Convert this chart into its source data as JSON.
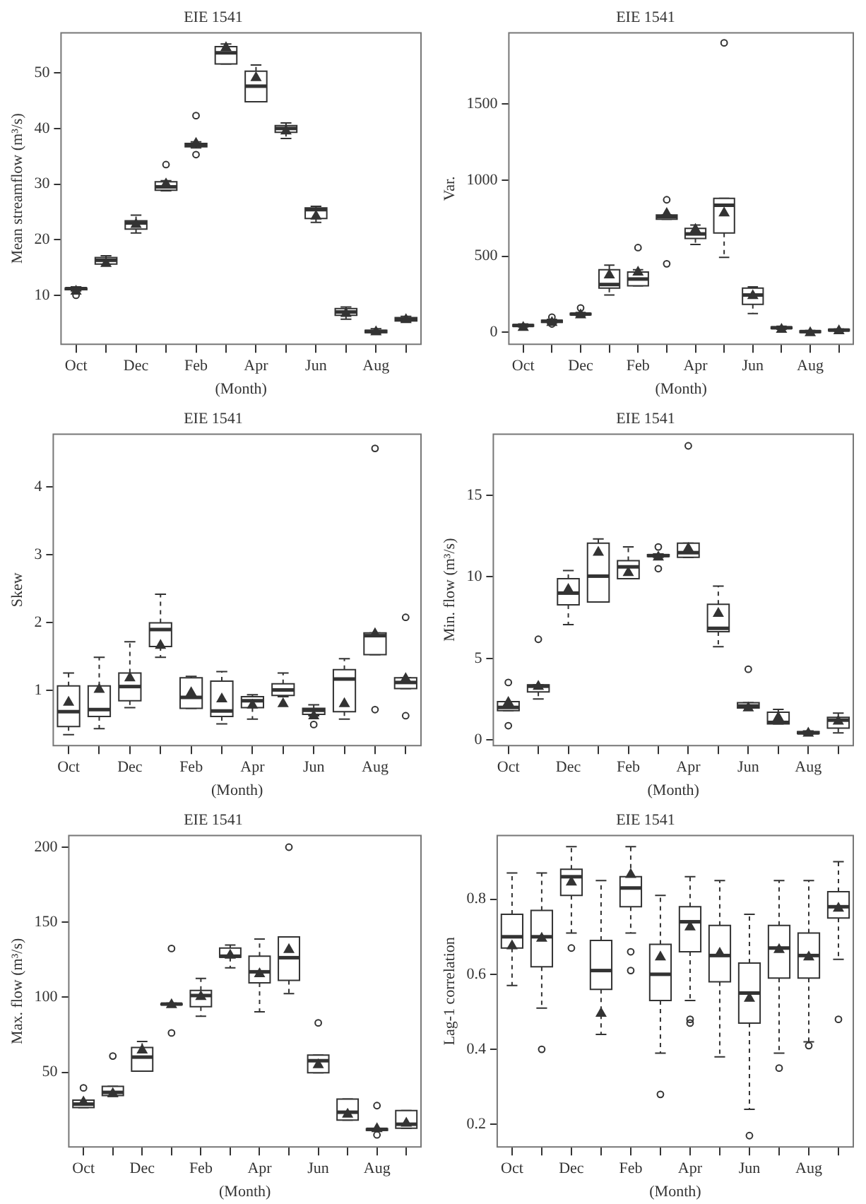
{
  "chart_data": [
    {
      "type": "box",
      "title": "EIE 1541",
      "xlabel": "(Month)",
      "ylabel": "Mean streamflow (m³/s)",
      "categories": [
        "Oct",
        null,
        "Dec",
        null,
        "Feb",
        null,
        "Apr",
        null,
        "Jun",
        null,
        "Aug",
        null
      ],
      "ylim": [
        1.2,
        57.2
      ],
      "yticks": [
        10,
        20,
        30,
        40,
        50
      ],
      "grid": false,
      "boxes": [
        {
          "low": 10.8,
          "q1": 11.0,
          "median": 11.2,
          "q3": 11.3,
          "high": 11.5,
          "mean": 11.0,
          "outliers": [
            10.0
          ]
        },
        {
          "low": 15.6,
          "q1": 15.6,
          "median": 16.3,
          "q3": 16.8,
          "high": 17.1,
          "mean": 16.0
        },
        {
          "low": 21.2,
          "q1": 21.9,
          "median": 23.0,
          "q3": 23.4,
          "high": 24.4,
          "mean": 23.0
        },
        {
          "low": 28.8,
          "q1": 28.9,
          "median": 29.5,
          "q3": 30.4,
          "high": 30.6,
          "mean": 30.3,
          "outliers": [
            33.5
          ]
        },
        {
          "low": 36.5,
          "q1": 36.7,
          "median": 37.0,
          "q3": 37.3,
          "high": 37.6,
          "mean": 37.6,
          "outliers": [
            42.3,
            35.3
          ]
        },
        {
          "low": 51.6,
          "q1": 51.6,
          "median": 53.6,
          "q3": 54.7,
          "high": 55.2,
          "mean": 54.8
        },
        {
          "low": 44.8,
          "q1": 44.8,
          "median": 47.6,
          "q3": 50.3,
          "high": 51.4,
          "mean": 49.4
        },
        {
          "low": 38.2,
          "q1": 39.3,
          "median": 40.0,
          "q3": 40.5,
          "high": 41.0,
          "mean": 39.8
        },
        {
          "low": 23.1,
          "q1": 23.8,
          "median": 25.4,
          "q3": 25.7,
          "high": 26.0,
          "mean": 24.5
        },
        {
          "low": 5.7,
          "q1": 6.4,
          "median": 7.0,
          "q3": 7.6,
          "high": 7.9,
          "mean": 7.0
        },
        {
          "low": 3.2,
          "q1": 3.3,
          "median": 3.5,
          "q3": 3.7,
          "high": 4.0,
          "mean": 3.7
        },
        {
          "low": 5.3,
          "q1": 5.4,
          "median": 5.7,
          "q3": 6.0,
          "high": 6.2,
          "mean": 5.9
        }
      ]
    },
    {
      "type": "box",
      "title": "EIE 1541",
      "xlabel": "(Month)",
      "ylabel": "Var.",
      "categories": [
        "Oct",
        null,
        "Dec",
        null,
        "Feb",
        null,
        "Apr",
        null,
        "Jun",
        null,
        "Aug",
        null
      ],
      "ylim": [
        -78,
        1966
      ],
      "yticks": [
        0,
        500,
        1000,
        1500
      ],
      "grid": false,
      "boxes": [
        {
          "low": 35,
          "q1": 40,
          "median": 45,
          "q3": 50,
          "high": 55,
          "mean": 42
        },
        {
          "low": 60,
          "q1": 65,
          "median": 73,
          "q3": 80,
          "high": 85,
          "mean": 75,
          "outliers": [
            100,
            55
          ]
        },
        {
          "low": 110,
          "q1": 115,
          "median": 120,
          "q3": 125,
          "high": 130,
          "mean": 125,
          "outliers": [
            160
          ]
        },
        {
          "low": 245,
          "q1": 290,
          "median": 314,
          "q3": 411,
          "high": 441,
          "mean": 387
        },
        {
          "low": 305,
          "q1": 305,
          "median": 350,
          "q3": 396,
          "high": 411,
          "mean": 405,
          "outliers": [
            556
          ]
        },
        {
          "low": 743,
          "q1": 743,
          "median": 760,
          "q3": 770,
          "high": 770,
          "mean": 790,
          "outliers": [
            870,
            450
          ]
        },
        {
          "low": 577,
          "q1": 616,
          "median": 646,
          "q3": 682,
          "high": 704,
          "mean": 686
        },
        {
          "low": 492,
          "q1": 652,
          "median": 834,
          "q3": 879,
          "high": 879,
          "mean": 794,
          "outliers": [
            1900
          ]
        },
        {
          "low": 124,
          "q1": 184,
          "median": 245,
          "q3": 290,
          "high": 299,
          "mean": 251
        },
        {
          "low": 20,
          "q1": 25,
          "median": 30,
          "q3": 35,
          "high": 40,
          "mean": 30
        },
        {
          "low": 0,
          "q1": 0,
          "median": 5,
          "q3": 10,
          "high": 12,
          "mean": 8
        },
        {
          "low": 8,
          "q1": 10,
          "median": 15,
          "q3": 20,
          "high": 22,
          "mean": 20
        }
      ]
    },
    {
      "type": "box",
      "title": "EIE 1541",
      "xlabel": "(Month)",
      "ylabel": "Skew",
      "categories": [
        "Oct",
        null,
        "Dec",
        null,
        "Feb",
        null,
        "Apr",
        null,
        "Jun",
        null,
        "Aug",
        null
      ],
      "ylim": [
        0.19,
        4.78
      ],
      "yticks": [
        1,
        2,
        3,
        4
      ],
      "grid": false,
      "boxes": [
        {
          "low": 0.35,
          "q1": 0.47,
          "median": 0.69,
          "q3": 1.07,
          "high": 1.26,
          "mean": 0.85
        },
        {
          "low": 0.44,
          "q1": 0.62,
          "median": 0.72,
          "q3": 1.07,
          "high": 1.49,
          "mean": 1.04
        },
        {
          "low": 0.75,
          "q1": 0.85,
          "median": 1.06,
          "q3": 1.26,
          "high": 1.72,
          "mean": 1.21
        },
        {
          "low": 1.49,
          "q1": 1.65,
          "median": 1.9,
          "q3": 2.0,
          "high": 2.42,
          "mean": 1.69
        },
        {
          "low": 0.74,
          "q1": 0.74,
          "median": 0.9,
          "q3": 1.19,
          "high": 1.21,
          "mean": 0.99
        },
        {
          "low": 0.51,
          "q1": 0.62,
          "median": 0.7,
          "q3": 1.14,
          "high": 1.28,
          "mean": 0.9
        },
        {
          "low": 0.58,
          "q1": 0.75,
          "median": 0.85,
          "q3": 0.91,
          "high": 0.94,
          "mean": 0.81
        },
        {
          "low": 0.91,
          "q1": 0.93,
          "median": 1.01,
          "q3": 1.1,
          "high": 1.26,
          "mean": 0.83
        },
        {
          "low": 0.63,
          "q1": 0.65,
          "median": 0.71,
          "q3": 0.74,
          "high": 0.79,
          "mean": 0.65,
          "outliers": [
            0.5
          ]
        },
        {
          "low": 0.58,
          "q1": 0.69,
          "median": 1.17,
          "q3": 1.31,
          "high": 1.47,
          "mean": 0.83
        },
        {
          "low": 1.53,
          "q1": 1.53,
          "median": 1.81,
          "q3": 1.85,
          "high": 1.85,
          "mean": 1.86,
          "outliers": [
            4.57,
            0.72
          ]
        },
        {
          "low": 1.03,
          "q1": 1.03,
          "median": 1.12,
          "q3": 1.19,
          "high": 1.19,
          "mean": 1.2,
          "outliers": [
            2.08,
            0.63
          ]
        }
      ]
    },
    {
      "type": "box",
      "title": "EIE 1541",
      "xlabel": "(Month)",
      "ylabel": "Min. flow (m³/s)",
      "categories": [
        "Oct",
        null,
        "Dec",
        null,
        "Feb",
        null,
        "Apr",
        null,
        "Jun",
        null,
        "Aug",
        null
      ],
      "ylim": [
        -0.35,
        18.75
      ],
      "yticks": [
        0,
        5,
        10,
        15
      ],
      "grid": false,
      "boxes": [
        {
          "low": 1.79,
          "q1": 1.79,
          "median": 1.99,
          "q3": 2.34,
          "high": 2.34,
          "mean": 2.39,
          "outliers": [
            3.52,
            0.87
          ]
        },
        {
          "low": 2.51,
          "q1": 2.94,
          "median": 3.29,
          "q3": 3.37,
          "high": 3.37,
          "mean": 3.37,
          "outliers": [
            6.17
          ]
        },
        {
          "low": 7.07,
          "q1": 8.28,
          "median": 9.0,
          "q3": 9.89,
          "high": 10.38,
          "mean": 9.32
        },
        {
          "low": 8.45,
          "q1": 8.45,
          "median": 10.04,
          "q3": 12.06,
          "high": 12.32,
          "mean": 11.6
        },
        {
          "low": 9.89,
          "q1": 9.89,
          "median": 10.61,
          "q3": 10.99,
          "high": 11.83,
          "mean": 10.35
        },
        {
          "low": 11.2,
          "q1": 11.25,
          "median": 11.3,
          "q3": 11.36,
          "high": 11.4,
          "mean": 11.3,
          "outliers": [
            11.83,
            10.5
          ]
        },
        {
          "low": 11.19,
          "q1": 11.19,
          "median": 11.48,
          "q3": 12.06,
          "high": 12.06,
          "mean": 11.83,
          "outliers": [
            18.03
          ]
        },
        {
          "low": 5.71,
          "q1": 6.63,
          "median": 6.84,
          "q3": 8.31,
          "high": 9.43,
          "mean": 7.85
        },
        {
          "low": 1.96,
          "q1": 1.96,
          "median": 2.08,
          "q3": 2.28,
          "high": 2.28,
          "mean": 2.05,
          "outliers": [
            4.33
          ]
        },
        {
          "low": 0.98,
          "q1": 0.98,
          "median": 1.07,
          "q3": 1.7,
          "high": 1.87,
          "mean": 1.47
        },
        {
          "low": 0.35,
          "q1": 0.38,
          "median": 0.43,
          "q3": 0.5,
          "high": 0.55,
          "mean": 0.5
        },
        {
          "low": 0.43,
          "q1": 0.72,
          "median": 1.21,
          "q3": 1.38,
          "high": 1.64,
          "mean": 1.24
        }
      ]
    },
    {
      "type": "box",
      "title": "EIE 1541",
      "xlabel": "(Month)",
      "ylabel": "Max. flow (m³/s)",
      "categories": [
        "Oct",
        null,
        "Dec",
        null,
        "Feb",
        null,
        "Apr",
        null,
        "Jun",
        null,
        "Aug",
        null
      ],
      "ylim": [
        0.3,
        207.7
      ],
      "yticks": [
        50,
        100,
        150,
        200
      ],
      "grid": false,
      "boxes": [
        {
          "low": 26.5,
          "q1": 26.5,
          "median": 28.8,
          "q3": 31.5,
          "high": 31.5,
          "mean": 31.2,
          "outliers": [
            39.6
          ]
        },
        {
          "low": 33.9,
          "q1": 34.5,
          "median": 36.6,
          "q3": 40.6,
          "high": 40.6,
          "mean": 36.9,
          "outliers": [
            60.8
          ]
        },
        {
          "low": 50.7,
          "q1": 50.7,
          "median": 60.1,
          "q3": 66.5,
          "high": 70.5,
          "mean": 65.8
        },
        {
          "low": 95,
          "q1": 95,
          "median": 95.4,
          "q3": 95.7,
          "high": 96,
          "mean": 96,
          "outliers": [
            132.4,
            76.2
          ]
        },
        {
          "low": 87.3,
          "q1": 93.7,
          "median": 101.1,
          "q3": 104.5,
          "high": 112.5,
          "mean": 101.4
        },
        {
          "low": 119.6,
          "q1": 126.6,
          "median": 127.3,
          "q3": 132.7,
          "high": 134.7,
          "mean": 129.0
        },
        {
          "low": 90.3,
          "q1": 109.5,
          "median": 116.9,
          "q3": 127.3,
          "high": 138.7,
          "mean": 116.6
        },
        {
          "low": 102.4,
          "q1": 111.2,
          "median": 126.3,
          "q3": 140.1,
          "high": 140.1,
          "mean": 132.7,
          "outliers": [
            199.9
          ]
        },
        {
          "low": 49.7,
          "q1": 49.7,
          "median": 57.7,
          "q3": 61.4,
          "high": 61.4,
          "mean": 56,
          "outliers": [
            82.9
          ]
        },
        {
          "low": 18.1,
          "q1": 18.1,
          "median": 23.4,
          "q3": 32.2,
          "high": 32.2,
          "mean": 23.1
        },
        {
          "low": 11.3,
          "q1": 11.3,
          "median": 12,
          "q3": 12.4,
          "high": 12.5,
          "mean": 13.4,
          "outliers": [
            27.8,
            8.3
          ]
        },
        {
          "low": 12.7,
          "q1": 12.7,
          "median": 15.4,
          "q3": 24.5,
          "high": 24.5,
          "mean": 17.1
        }
      ]
    },
    {
      "type": "box",
      "title": "EIE 1541",
      "xlabel": "(Month)",
      "ylabel": "Lag-1 correlation",
      "categories": [
        "Oct",
        null,
        "Dec",
        null,
        "Feb",
        null,
        "Apr",
        null,
        "Jun",
        null,
        "Aug",
        null
      ],
      "ylim": [
        0.14,
        0.97
      ],
      "yticks": [
        {
          "value": 0.2,
          "label": "0.2"
        },
        {
          "value": 0.4,
          "label": "0.4"
        },
        {
          "value": 0.6,
          "label": "0.6"
        },
        {
          "value": 0.8,
          "label": "0.8"
        }
      ],
      "grid": false,
      "boxes": [
        {
          "low": 0.57,
          "q1": 0.67,
          "median": 0.7,
          "q3": 0.76,
          "high": 0.87,
          "mean": 0.68
        },
        {
          "low": 0.51,
          "q1": 0.62,
          "median": 0.7,
          "q3": 0.77,
          "high": 0.87,
          "mean": 0.7,
          "outliers": [
            0.4
          ]
        },
        {
          "low": 0.71,
          "q1": 0.81,
          "median": 0.86,
          "q3": 0.88,
          "high": 0.94,
          "mean": 0.85,
          "outliers": [
            0.67
          ]
        },
        {
          "low": 0.44,
          "q1": 0.56,
          "median": 0.61,
          "q3": 0.69,
          "high": 0.85,
          "mean": 0.5
        },
        {
          "low": 0.71,
          "q1": 0.78,
          "median": 0.83,
          "q3": 0.86,
          "high": 0.94,
          "mean": 0.87,
          "outliers": [
            0.66,
            0.61
          ]
        },
        {
          "low": 0.39,
          "q1": 0.53,
          "median": 0.6,
          "q3": 0.68,
          "high": 0.81,
          "mean": 0.65,
          "outliers": [
            0.28
          ]
        },
        {
          "low": 0.53,
          "q1": 0.66,
          "median": 0.74,
          "q3": 0.78,
          "high": 0.86,
          "mean": 0.73,
          "outliers": [
            0.48,
            0.47
          ]
        },
        {
          "low": 0.38,
          "q1": 0.58,
          "median": 0.65,
          "q3": 0.73,
          "high": 0.85,
          "mean": 0.66
        },
        {
          "low": 0.24,
          "q1": 0.47,
          "median": 0.55,
          "q3": 0.63,
          "high": 0.76,
          "mean": 0.54,
          "outliers": [
            0.17
          ]
        },
        {
          "low": 0.39,
          "q1": 0.59,
          "median": 0.67,
          "q3": 0.73,
          "high": 0.85,
          "mean": 0.67,
          "outliers": [
            0.35
          ]
        },
        {
          "low": 0.42,
          "q1": 0.59,
          "median": 0.65,
          "q3": 0.71,
          "high": 0.85,
          "mean": 0.65,
          "outliers": [
            0.41
          ]
        },
        {
          "low": 0.64,
          "q1": 0.75,
          "median": 0.78,
          "q3": 0.82,
          "high": 0.9,
          "mean": 0.78,
          "outliers": [
            0.48
          ]
        }
      ]
    }
  ]
}
